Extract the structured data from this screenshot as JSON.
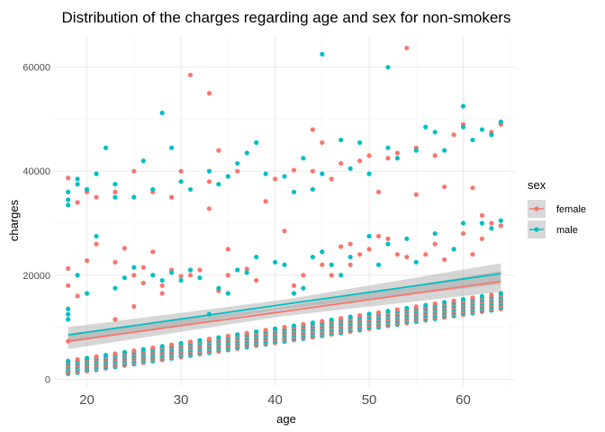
{
  "chart_data": {
    "type": "scatter",
    "title": "Distribution of the charges regarding age and sex for non-smokers",
    "xlabel": "age",
    "ylabel": "charges",
    "xlim": [
      16.5,
      65.5
    ],
    "ylim": [
      -1500,
      66000
    ],
    "x_ticks": [
      20,
      30,
      40,
      50,
      60
    ],
    "x_tick_labels": [
      "20",
      "30",
      "40",
      "50",
      "60"
    ],
    "y_ticks": [
      0,
      20000,
      40000,
      60000
    ],
    "y_tick_labels": [
      "0",
      "20000",
      "40000",
      "60000"
    ],
    "grid": true,
    "legend": {
      "title": "sex",
      "placement": "right"
    },
    "series": [
      {
        "name": "female",
        "color": "#F8766D",
        "points": [
          [
            18,
            7300
          ],
          [
            18,
            21300
          ],
          [
            18,
            38700
          ],
          [
            18,
            18000
          ],
          [
            19,
            16000
          ],
          [
            19,
            34000
          ],
          [
            20,
            22800
          ],
          [
            20,
            36000
          ],
          [
            21,
            26000
          ],
          [
            21,
            35000
          ],
          [
            23,
            11500
          ],
          [
            23,
            22500
          ],
          [
            23,
            36000
          ],
          [
            24,
            25200
          ],
          [
            25,
            14000
          ],
          [
            25,
            20000
          ],
          [
            25,
            40000
          ],
          [
            26,
            18500
          ],
          [
            26,
            21500
          ],
          [
            27,
            24500
          ],
          [
            27,
            36000
          ],
          [
            28,
            16500
          ],
          [
            28,
            18000
          ],
          [
            29,
            21000
          ],
          [
            29,
            35000
          ],
          [
            30,
            19800
          ],
          [
            30,
            40000
          ],
          [
            31,
            20000
          ],
          [
            31,
            58500
          ],
          [
            32,
            21000
          ],
          [
            33,
            32800
          ],
          [
            33,
            38000
          ],
          [
            33,
            55000
          ],
          [
            34,
            17000
          ],
          [
            34,
            44000
          ],
          [
            35,
            20000
          ],
          [
            35,
            25000
          ],
          [
            36,
            40000
          ],
          [
            37,
            21200
          ],
          [
            38,
            19000
          ],
          [
            39,
            34200
          ],
          [
            40,
            38500
          ],
          [
            41,
            28500
          ],
          [
            42,
            18000
          ],
          [
            42,
            40200
          ],
          [
            43,
            20000
          ],
          [
            44,
            40000
          ],
          [
            44,
            48000
          ],
          [
            45,
            22000
          ],
          [
            45,
            45500
          ],
          [
            46,
            20000
          ],
          [
            46,
            38500
          ],
          [
            47,
            25500
          ],
          [
            47,
            41500
          ],
          [
            48,
            22000
          ],
          [
            48,
            26000
          ],
          [
            49,
            24000
          ],
          [
            49,
            42000
          ],
          [
            50,
            25000
          ],
          [
            50,
            43000
          ],
          [
            51,
            27500
          ],
          [
            51,
            36000
          ],
          [
            52,
            27000
          ],
          [
            52,
            42500
          ],
          [
            53,
            24000
          ],
          [
            53,
            43500
          ],
          [
            54,
            63700
          ],
          [
            54,
            23500
          ],
          [
            55,
            35500
          ],
          [
            55,
            44500
          ],
          [
            56,
            24000
          ],
          [
            57,
            26000
          ],
          [
            57,
            43000
          ],
          [
            58,
            37000
          ],
          [
            58,
            23000
          ],
          [
            59,
            25000
          ],
          [
            59,
            47000
          ],
          [
            60,
            28000
          ],
          [
            60,
            49000
          ],
          [
            61,
            36800
          ],
          [
            61,
            24000
          ],
          [
            62,
            31500
          ],
          [
            62,
            27000
          ],
          [
            63,
            47500
          ],
          [
            63,
            30000
          ],
          [
            64,
            49000
          ],
          [
            64,
            29500
          ]
        ],
        "trend": {
          "intercept_age": 18,
          "start": 7300,
          "end_age": 64,
          "end": 18800
        }
      },
      {
        "name": "male",
        "color": "#00BFC4",
        "points": [
          [
            18,
            11500
          ],
          [
            18,
            12500
          ],
          [
            18,
            13500
          ],
          [
            18,
            33500
          ],
          [
            18,
            34500
          ],
          [
            18,
            36000
          ],
          [
            19,
            20000
          ],
          [
            19,
            37500
          ],
          [
            19,
            38500
          ],
          [
            20,
            16500
          ],
          [
            20,
            36500
          ],
          [
            21,
            27500
          ],
          [
            21,
            39500
          ],
          [
            22,
            44500
          ],
          [
            23,
            17500
          ],
          [
            23,
            35000
          ],
          [
            23,
            37500
          ],
          [
            24,
            19500
          ],
          [
            25,
            21500
          ],
          [
            25,
            35000
          ],
          [
            26,
            42000
          ],
          [
            27,
            20000
          ],
          [
            27,
            36500
          ],
          [
            28,
            51200
          ],
          [
            28,
            19000
          ],
          [
            29,
            44500
          ],
          [
            29,
            20500
          ],
          [
            30,
            19000
          ],
          [
            30,
            38000
          ],
          [
            31,
            21000
          ],
          [
            31,
            36500
          ],
          [
            32,
            19500
          ],
          [
            33,
            12500
          ],
          [
            33,
            40000
          ],
          [
            34,
            17500
          ],
          [
            34,
            37500
          ],
          [
            35,
            16500
          ],
          [
            35,
            39000
          ],
          [
            36,
            41500
          ],
          [
            36,
            21000
          ],
          [
            37,
            43500
          ],
          [
            37,
            20500
          ],
          [
            38,
            45500
          ],
          [
            38,
            23500
          ],
          [
            39,
            39500
          ],
          [
            40,
            22500
          ],
          [
            41,
            22000
          ],
          [
            41,
            39000
          ],
          [
            42,
            16500
          ],
          [
            42,
            36000
          ],
          [
            43,
            17500
          ],
          [
            43,
            42500
          ],
          [
            44,
            23500
          ],
          [
            44,
            36500
          ],
          [
            45,
            62500
          ],
          [
            45,
            24500
          ],
          [
            45,
            39500
          ],
          [
            46,
            22000
          ],
          [
            47,
            46000
          ],
          [
            47,
            20000
          ],
          [
            48,
            40500
          ],
          [
            48,
            23500
          ],
          [
            49,
            45500
          ],
          [
            50,
            27500
          ],
          [
            50,
            39500
          ],
          [
            51,
            22000
          ],
          [
            52,
            60000
          ],
          [
            52,
            44500
          ],
          [
            52,
            26000
          ],
          [
            53,
            42500
          ],
          [
            54,
            27000
          ],
          [
            55,
            44000
          ],
          [
            55,
            22500
          ],
          [
            56,
            48500
          ],
          [
            57,
            47500
          ],
          [
            57,
            28000
          ],
          [
            58,
            44000
          ],
          [
            59,
            25000
          ],
          [
            60,
            52500
          ],
          [
            60,
            48500
          ],
          [
            60,
            30000
          ],
          [
            61,
            46000
          ],
          [
            62,
            48000
          ],
          [
            62,
            30000
          ],
          [
            63,
            47000
          ],
          [
            63,
            29000
          ],
          [
            64,
            49500
          ],
          [
            64,
            30500
          ]
        ],
        "trend": {
          "intercept_age": 18,
          "start": 8500,
          "end_age": 64,
          "end": 20300
        }
      }
    ],
    "bottom_band": {
      "age_from": 18,
      "age_to": 64,
      "low_start": 1000,
      "low_end": 13500,
      "high_start": 3500,
      "high_end": 16500
    },
    "ci_halfwidth": {
      "at_start": 1500,
      "at_mid": 900,
      "at_end": 2000
    }
  }
}
